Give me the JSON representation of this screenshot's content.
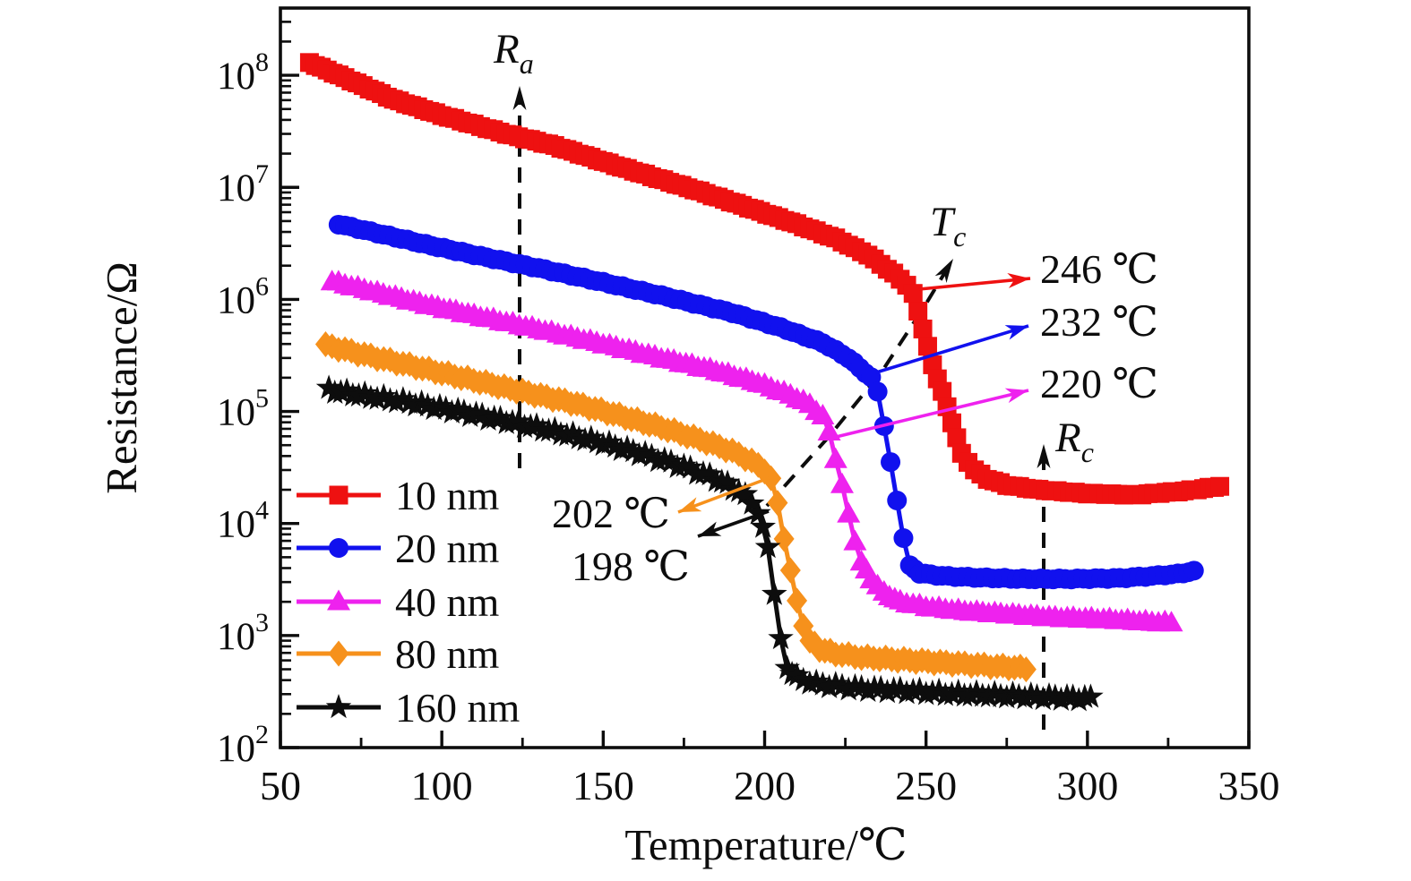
{
  "chart_data": {
    "type": "line",
    "xlabel": "Temperature/℃",
    "ylabel": "Resistance/Ω",
    "legend_position": "lower-left",
    "grid": false,
    "x_axis": {
      "min": 50,
      "max": 350,
      "major_ticks": [
        50,
        100,
        150,
        200,
        250,
        300,
        350
      ],
      "minor_step": 25
    },
    "y_axis": {
      "scale": "log",
      "unit": "Ω",
      "log_min": 2,
      "log_max": 8.6,
      "decade_exponents": [
        2,
        3,
        4,
        5,
        6,
        7,
        8
      ]
    },
    "series": [
      {
        "name": "10 nm",
        "color": "#ee1111",
        "marker": "square",
        "marker_step_c": 2,
        "transition_c": 246,
        "points": [
          [
            59,
            130000000.0
          ],
          [
            70,
            95000000.0
          ],
          [
            85,
            61000000.0
          ],
          [
            100,
            44000000.0
          ],
          [
            120,
            30000000.0
          ],
          [
            135,
            23500000.0
          ],
          [
            150,
            17000000.0
          ],
          [
            165,
            12500000.0
          ],
          [
            180,
            9200000.0
          ],
          [
            195,
            6600000.0
          ],
          [
            210,
            4700000.0
          ],
          [
            222,
            3500000.0
          ],
          [
            232,
            2500000.0
          ],
          [
            240,
            1700000.0
          ],
          [
            244,
            1350000.0
          ],
          [
            246,
            1120000.0
          ],
          [
            249,
            550000.0
          ],
          [
            252,
            260000.0
          ],
          [
            255,
            150000.0
          ],
          [
            258,
            80000.0
          ],
          [
            261,
            42000.0
          ],
          [
            265,
            30000.0
          ],
          [
            269,
            25000.0
          ],
          [
            275,
            22000.0
          ],
          [
            285,
            20000.0
          ],
          [
            300,
            18500.0
          ],
          [
            315,
            18000.0
          ],
          [
            330,
            19500.0
          ],
          [
            336,
            20500.0
          ],
          [
            341,
            21500.0
          ]
        ]
      },
      {
        "name": "20 nm",
        "color": "#1111ee",
        "marker": "circle",
        "marker_step_c": 2,
        "transition_c": 232,
        "points": [
          [
            68,
            4700000.0
          ],
          [
            80,
            3900000.0
          ],
          [
            95,
            3100000.0
          ],
          [
            110,
            2500000.0
          ],
          [
            130,
            1900000.0
          ],
          [
            150,
            1420000.0
          ],
          [
            170,
            1050000.0
          ],
          [
            190,
            760000.0
          ],
          [
            205,
            560000.0
          ],
          [
            218,
            410000.0
          ],
          [
            226,
            300000.0
          ],
          [
            233,
            200000.0
          ],
          [
            235,
            150000.0
          ],
          [
            237,
            75000.0
          ],
          [
            239,
            35000.0
          ],
          [
            241,
            16000.0
          ],
          [
            243,
            7500.0
          ],
          [
            245,
            4200.0
          ],
          [
            248,
            3600.0
          ],
          [
            255,
            3400.0
          ],
          [
            265,
            3300.0
          ],
          [
            280,
            3200.0
          ],
          [
            295,
            3200.0
          ],
          [
            310,
            3250.0
          ],
          [
            320,
            3400.0
          ],
          [
            328,
            3550.0
          ],
          [
            333,
            3750.0
          ]
        ]
      },
      {
        "name": "40 nm",
        "color": "#ee22ee",
        "marker": "triangle",
        "marker_step_c": 2,
        "transition_c": 220,
        "points": [
          [
            66,
            1450000.0
          ],
          [
            80,
            1150000.0
          ],
          [
            95,
            900000.0
          ],
          [
            110,
            720000.0
          ],
          [
            130,
            540000.0
          ],
          [
            150,
            400000.0
          ],
          [
            170,
            290000.0
          ],
          [
            185,
            230000.0
          ],
          [
            198,
            180000.0
          ],
          [
            208,
            140000.0
          ],
          [
            214,
            115000.0
          ],
          [
            218,
            90000.0
          ],
          [
            220,
            65000.0
          ],
          [
            222,
            38000.0
          ],
          [
            224,
            22000.0
          ],
          [
            226,
            12000.0
          ],
          [
            228,
            7000.0
          ],
          [
            230,
            4500.0
          ],
          [
            233,
            3200.0
          ],
          [
            237,
            2400.0
          ],
          [
            242,
            2000.0
          ],
          [
            250,
            1800.0
          ],
          [
            262,
            1650.0
          ],
          [
            275,
            1550.0
          ],
          [
            290,
            1450.0
          ],
          [
            305,
            1400.0
          ],
          [
            318,
            1330.0
          ],
          [
            326,
            1300.0
          ]
        ]
      },
      {
        "name": "80 nm",
        "color": "#f6911c",
        "marker": "diamond",
        "marker_step_c": 2,
        "transition_c": 202,
        "points": [
          [
            64,
            390000.0
          ],
          [
            78,
            310000.0
          ],
          [
            92,
            250000.0
          ],
          [
            108,
            195000.0
          ],
          [
            125,
            150000.0
          ],
          [
            140,
            120000.0
          ],
          [
            155,
            92000.0
          ],
          [
            168,
            72000.0
          ],
          [
            180,
            56000.0
          ],
          [
            190,
            44000.0
          ],
          [
            196,
            36000.0
          ],
          [
            200,
            30000.0
          ],
          [
            202,
            25000.0
          ],
          [
            204,
            15000.0
          ],
          [
            206,
            7500.0
          ],
          [
            208,
            3800.0
          ],
          [
            210,
            2000.0
          ],
          [
            212,
            1250.0
          ],
          [
            214,
            900.0
          ],
          [
            217,
            760.0
          ],
          [
            222,
            690.0
          ],
          [
            230,
            640.0
          ],
          [
            245,
            600.0
          ],
          [
            260,
            560.0
          ],
          [
            272,
            530.0
          ],
          [
            281,
            510.0
          ]
        ]
      },
      {
        "name": "160 nm",
        "color": "#0d0d0d",
        "marker": "star",
        "marker_step_c": 2,
        "transition_c": 198,
        "points": [
          [
            65,
            155000.0
          ],
          [
            78,
            135000.0
          ],
          [
            90,
            120000.0
          ],
          [
            105,
            100000.0
          ],
          [
            120,
            82000.0
          ],
          [
            135,
            66000.0
          ],
          [
            150,
            52000.0
          ],
          [
            163,
            41000.0
          ],
          [
            175,
            32000.0
          ],
          [
            185,
            25000.0
          ],
          [
            192,
            19500.0
          ],
          [
            196,
            15500.0
          ],
          [
            198,
            12500.0
          ],
          [
            201,
            6300.0
          ],
          [
            203,
            2400.0
          ],
          [
            205,
            900.0
          ],
          [
            207,
            520.0
          ],
          [
            210,
            420.0
          ],
          [
            216,
            370.0
          ],
          [
            228,
            340.0
          ],
          [
            244,
            320.0
          ],
          [
            260,
            300.0
          ],
          [
            275,
            290.0
          ],
          [
            290,
            280.0
          ],
          [
            301,
            275.0
          ]
        ]
      }
    ],
    "annotations": {
      "ra": {
        "main": "R",
        "sub": "a"
      },
      "tc": {
        "main": "T",
        "sub": "c"
      },
      "rc": {
        "main": "R",
        "sub": "c"
      },
      "transition_labels": [
        {
          "text": "246 ℃",
          "series": "10 nm",
          "color": "#ee1111"
        },
        {
          "text": "232 ℃",
          "series": "20 nm",
          "color": "#1111ee"
        },
        {
          "text": "220 ℃",
          "series": "40 nm",
          "color": "#ee22ee"
        },
        {
          "text": "202 ℃",
          "series": "80 nm",
          "color": "#f6911c"
        },
        {
          "text": "198 ℃",
          "series": "160 nm",
          "color": "#0d0d0d"
        }
      ]
    }
  }
}
